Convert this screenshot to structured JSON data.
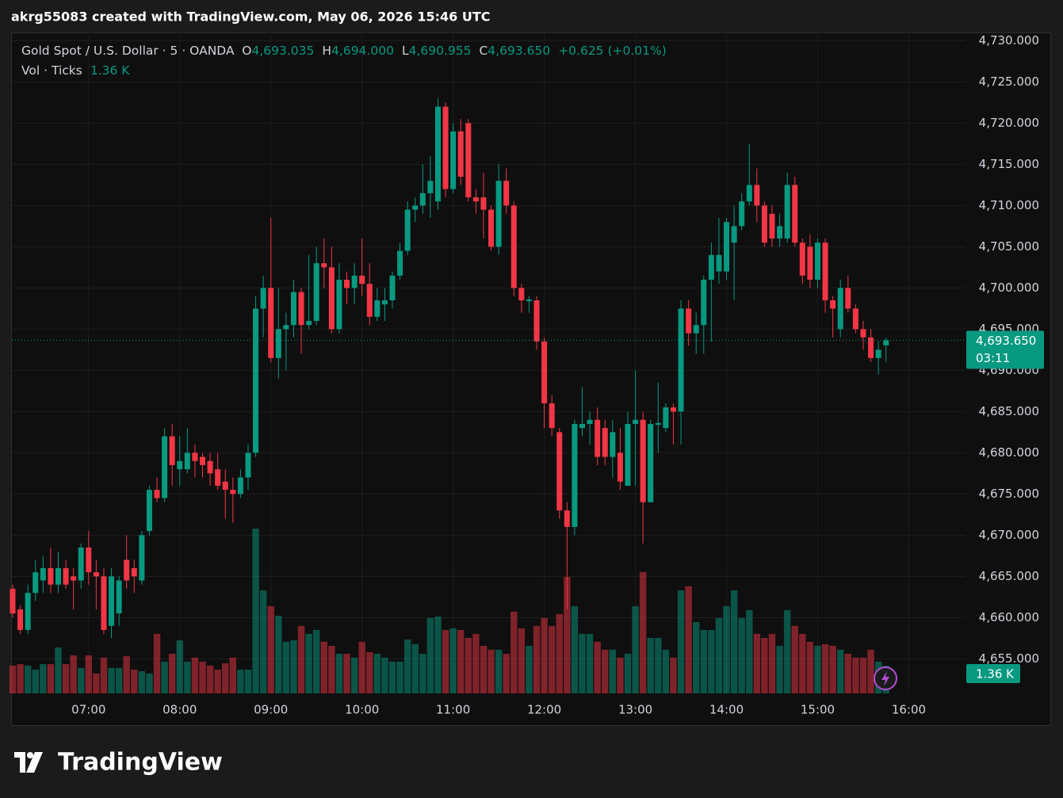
{
  "header": "akrg55083 created with TradingView.com, May 06, 2026 15:46 UTC",
  "footer": "TradingView",
  "chart_data": {
    "type": "candlestick",
    "symbol": "Gold Spot / U.S. Dollar · 5 · OANDA",
    "ohlc_legend": [
      {
        "key": "O",
        "value": 4693.035,
        "label": "4,693.035"
      },
      {
        "key": "H",
        "value": 4694.0,
        "label": "4,694.000"
      },
      {
        "key": "L",
        "value": 4690.955,
        "label": "4,690.955"
      },
      {
        "key": "C",
        "value": 4693.65,
        "label": "4,693.650"
      }
    ],
    "change": "+0.625 (+0.01%)",
    "volume_legend": "Vol · Ticks",
    "volume_label": "1.36 K",
    "countdown": "03:11",
    "up_color": "#089981",
    "down_color": "#f23645",
    "grid": true,
    "categories": [
      null,
      null,
      null,
      null,
      null,
      null,
      null,
      null,
      null,
      null,
      "07:00",
      null,
      null,
      null,
      null,
      null,
      null,
      null,
      null,
      null,
      null,
      null,
      "08:00",
      null,
      null,
      null,
      null,
      null,
      null,
      null,
      null,
      null,
      null,
      null,
      "09:00",
      null,
      null,
      null,
      null,
      null,
      null,
      null,
      null,
      null,
      null,
      null,
      "10:00",
      null,
      null,
      null,
      null,
      null,
      null,
      null,
      null,
      null,
      null,
      null,
      "11:00",
      null,
      null,
      null,
      null,
      null,
      null,
      null,
      null,
      null,
      null,
      null,
      "12:00",
      null,
      null,
      null,
      null,
      null,
      null,
      null,
      null,
      null,
      null,
      null,
      "13:00",
      null,
      null,
      null,
      null,
      null,
      null,
      null,
      null,
      null,
      null,
      null,
      "14:00",
      null,
      null,
      null,
      null,
      null,
      null,
      null,
      null,
      null,
      null,
      null,
      "15:00",
      null,
      null,
      null,
      null,
      null,
      null,
      null,
      null,
      null,
      null,
      null,
      "16:00"
    ],
    "open": [
      4663.5,
      4661,
      4658.5,
      4663,
      4664.5,
      4666,
      4664,
      4666,
      4665,
      4664.5,
      4668.5,
      4665.5,
      4665,
      4659,
      4660.5,
      4667,
      4666,
      4664.5,
      4670.5,
      4675.5,
      4674.5,
      4682,
      4678,
      4678,
      4680,
      4679.5,
      4679,
      4678,
      4676.5,
      4675.5,
      4675,
      4677,
      4680,
      4697.5,
      4700,
      4691.5,
      4695,
      4695.5,
      4699.5,
      4695.5,
      4696,
      4703,
      4702.5,
      4695,
      4701,
      4700,
      4701.5,
      4700.5,
      4696.5,
      4698,
      4698.5,
      4701.5,
      4704.5,
      4709.5,
      4710,
      4711.5,
      4710.5,
      4722,
      4712,
      4719,
      4720,
      4711,
      4711,
      4709.5,
      4705,
      4713,
      4710,
      4700,
      4698.4,
      4698.5,
      4693.5,
      4686,
      4682.5,
      4673,
      4671,
      4683,
      4683.5,
      4684,
      4683,
      4679.5,
      4680,
      4676,
      4683.5,
      4684,
      4674,
      4683.4,
      4683,
      4685.5,
      4685,
      4697.5,
      4694.5,
      4695.5,
      4701,
      4702,
      4702,
      4705.5,
      4707.5,
      4710.5,
      4712.5,
      4710,
      4709,
      4706,
      4706,
      4712.5,
      4705.5,
      4705,
      4701,
      4705.5,
      4698.5,
      4695,
      4700,
      4697.5,
      4695,
      4694,
      4691.5,
      4693.035,
      null,
      null,
      null
    ],
    "high": [
      4664,
      4661.5,
      4664,
      4667,
      4667.5,
      4668.5,
      4668,
      4667,
      4666,
      4669,
      4670.5,
      4667,
      4666,
      4666,
      4665,
      4670,
      4667,
      4670.5,
      4676,
      4677,
      4683,
      4683.5,
      4682,
      4683,
      4681,
      4680,
      4680,
      4680,
      4678,
      4677,
      4678,
      4681,
      4699,
      4701.5,
      4708.5,
      4700,
      4697,
      4701,
      4700,
      4704,
      4705,
      4706,
      4705,
      4703,
      4702,
      4703,
      4706,
      4703,
      4700,
      4700,
      4702,
      4705.5,
      4710.5,
      4711,
      4715,
      4716,
      4723,
      4722.5,
      4720,
      4720.5,
      4720.5,
      4712,
      4714,
      4710,
      4715,
      4714.5,
      4710.5,
      4700.5,
      4699,
      4699,
      4694,
      4687,
      4683,
      4674,
      4684,
      4688,
      4685,
      4685.5,
      4684,
      4684,
      4683,
      4685,
      4690,
      4685,
      4684,
      4688.5,
      4686,
      4686,
      4698.5,
      4698.5,
      4697,
      4701.5,
      4705.5,
      4708.5,
      4708.5,
      4710,
      4711.5,
      4717.5,
      4714.5,
      4710.5,
      4710,
      4709,
      4714,
      4713.5,
      4706,
      4706.5,
      4706,
      4706,
      4699,
      4701,
      4701.5,
      4698,
      4696,
      4695,
      4693.5,
      4694,
      null,
      null,
      null
    ],
    "low": [
      4660,
      4658,
      4658,
      4662,
      4663,
      4663,
      4663,
      4663.5,
      4661,
      4663.5,
      4664,
      4661,
      4658,
      4657.5,
      4659,
      4663.5,
      4663,
      4664,
      4670,
      4674,
      4674,
      4676,
      4676,
      4677.5,
      4677,
      4677,
      4676,
      4675.5,
      4672,
      4671.5,
      4674.5,
      4675.5,
      4679.5,
      4694,
      4691,
      4689,
      4690,
      4694,
      4692,
      4695,
      4695.5,
      4700,
      4694.5,
      4694.5,
      4698,
      4698,
      4699,
      4695.5,
      4696,
      4696,
      4697.5,
      4701,
      4704,
      4708,
      4709,
      4708.5,
      4709.5,
      4711,
      4711.5,
      4712.5,
      4710.5,
      4709,
      4706,
      4704.5,
      4704,
      4709,
      4699,
      4697,
      4697,
      4692.5,
      4683,
      4682,
      4672,
      4661,
      4670,
      4682,
      4681,
      4678.5,
      4678.5,
      4677,
      4675.5,
      4676,
      4676,
      4669,
      4674,
      4680,
      4682.5,
      4681,
      4681,
      4693,
      4692,
      4692,
      4693.5,
      4700.5,
      4701,
      4698.5,
      4707,
      4710,
      4708,
      4705,
      4705,
      4705,
      4705.5,
      4705,
      4700.5,
      4700,
      4700,
      4697,
      4694,
      4694,
      4697,
      4694.5,
      4692.5,
      4691,
      4689.5,
      4690.955,
      null,
      null,
      null
    ],
    "close": [
      4660.5,
      4658.5,
      4663,
      4665.5,
      4666,
      4664,
      4666,
      4664,
      4664.5,
      4668.5,
      4665.5,
      4665,
      4658.5,
      4665,
      4664.5,
      4664.5,
      4665,
      4670,
      4675.5,
      4674.5,
      4682,
      4678.5,
      4679,
      4680,
      4679,
      4678.5,
      4677.5,
      4676,
      4675.5,
      4675,
      4677,
      4680,
      4697.5,
      4700,
      4691.5,
      4695,
      4695.5,
      4699.5,
      4695.5,
      4696,
      4703,
      4702.5,
      4695,
      4701,
      4700,
      4701.5,
      4700.5,
      4696.5,
      4698.5,
      4698.5,
      4701.5,
      4704.5,
      4709.5,
      4710,
      4711.5,
      4713,
      4722,
      4712,
      4719,
      4713.5,
      4711,
      4710.5,
      4709.5,
      4705,
      4713,
      4710,
      4700,
      4698.5,
      4698.6,
      4693.5,
      4686,
      4683,
      4673,
      4671,
      4683.5,
      4683.5,
      4684,
      4679.5,
      4679.5,
      4682.5,
      4676.5,
      4683.5,
      4684,
      4674,
      4683.5,
      4683.6,
      4685.5,
      4685,
      4697.5,
      4694.5,
      4695.5,
      4701,
      4704,
      4704,
      4708,
      4707.5,
      4710.5,
      4712.5,
      4710,
      4705.5,
      4706,
      4707.5,
      4712.5,
      4705.5,
      4701.5,
      4701,
      4705.5,
      4698.5,
      4697.5,
      4700,
      4697.5,
      4695,
      4694,
      4691.5,
      4692.5,
      4693.65,
      null,
      null,
      null
    ],
    "volume": [
      1370,
      1440,
      1370,
      1170,
      1440,
      1440,
      2260,
      1440,
      1870,
      1250,
      1870,
      980,
      1760,
      1250,
      1250,
      1830,
      1170,
      1090,
      980,
      2930,
      1560,
      1950,
      2610,
      1560,
      1760,
      1560,
      1370,
      1170,
      1480,
      1760,
      1170,
      1170,
      8110,
      5070,
      4290,
      3820,
      2540,
      2610,
      3320,
      2930,
      3120,
      2540,
      2340,
      1950,
      1950,
      1760,
      2540,
      2030,
      1950,
      1760,
      1560,
      1560,
      2650,
      2420,
      1950,
      3710,
      3780,
      3120,
      3200,
      3120,
      2730,
      2930,
      2340,
      2150,
      2150,
      1950,
      4020,
      3200,
      2340,
      3320,
      3710,
      3320,
      3900,
      5730,
      4290,
      2930,
      2930,
      2540,
      2150,
      2150,
      1760,
      1950,
      4290,
      5970,
      2730,
      2730,
      2150,
      1760,
      5070,
      5270,
      3510,
      3120,
      3120,
      3710,
      4290,
      5070,
      3710,
      4100,
      2930,
      2730,
      2930,
      2340,
      4100,
      3320,
      2930,
      2540,
      2340,
      2420,
      2340,
      2150,
      1950,
      1760,
      1760,
      2150,
      1560,
      1360,
      null,
      null,
      null
    ],
    "ylim": [
      4650.8,
      4731
    ],
    "yticks": [
      {
        "value": 4655,
        "label": "4,655.000"
      },
      {
        "value": 4660,
        "label": "4,660.000"
      },
      {
        "value": 4665,
        "label": "4,665.000"
      },
      {
        "value": 4670,
        "label": "4,670.000"
      },
      {
        "value": 4675,
        "label": "4,675.000"
      },
      {
        "value": 4680,
        "label": "4,680.000"
      },
      {
        "value": 4685,
        "label": "4,685.000"
      },
      {
        "value": 4690,
        "label": "4,690.000"
      },
      {
        "value": 4695,
        "label": "4,695.000"
      },
      {
        "value": 4700,
        "label": "4,700.000"
      },
      {
        "value": 4705,
        "label": "4,705.000"
      },
      {
        "value": 4710,
        "label": "4,710.000"
      },
      {
        "value": 4715,
        "label": "4,715.000"
      },
      {
        "value": 4720,
        "label": "4,720.000"
      },
      {
        "value": 4725,
        "label": "4,725.000"
      },
      {
        "value": 4730,
        "label": "4,730.000"
      }
    ]
  }
}
